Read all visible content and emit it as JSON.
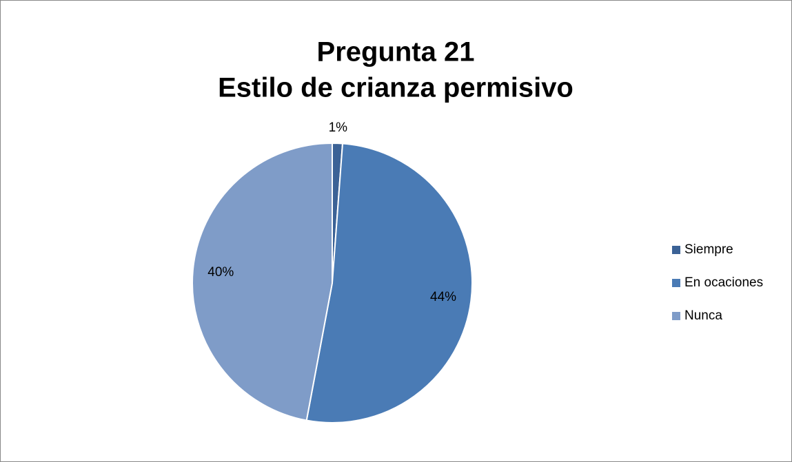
{
  "chart_data": {
    "type": "pie",
    "title": [
      "Pregunta 21",
      "Estilo de crianza permisivo"
    ],
    "categories": [
      "Siempre",
      "En ocaciones",
      "Nunca"
    ],
    "values": [
      1,
      44,
      40
    ],
    "value_labels": [
      "1%",
      "44%",
      "40%"
    ],
    "colors": [
      "#3b6296",
      "#4a7bb5",
      "#7f9cc8"
    ],
    "legend": "right"
  }
}
